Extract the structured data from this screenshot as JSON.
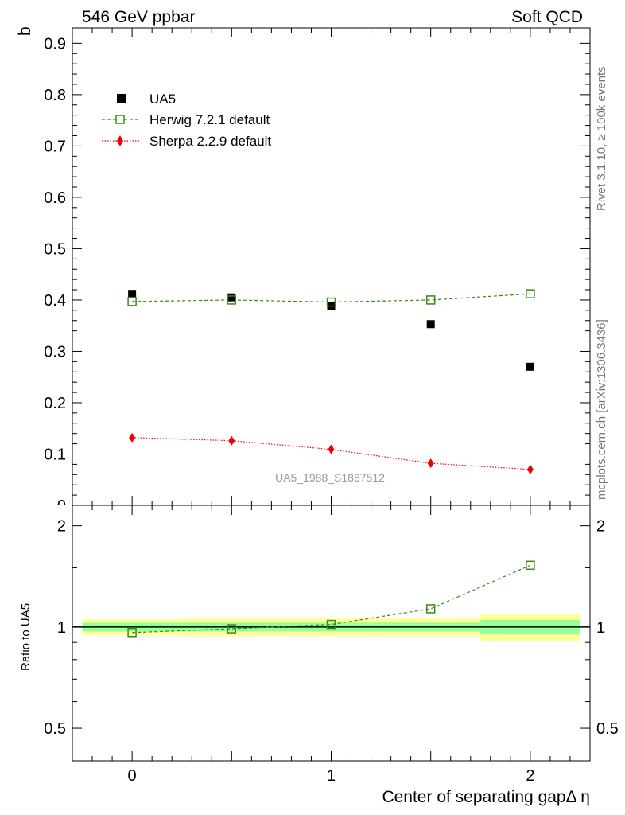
{
  "header": {
    "left": "546 GeV ppbar",
    "right": "Soft QCD"
  },
  "side_text": {
    "rivet": "Rivet 3.1.10, ≥ 100k events",
    "mcplots": "mcplots.cern.ch [arXiv:1306.3436]"
  },
  "watermark": "UA5_1988_S1867512",
  "legend": {
    "ua5": "UA5",
    "herwig": "Herwig 7.2.1 default",
    "sherpa": "Sherpa 2.2.9 default"
  },
  "colors": {
    "data": "#000000",
    "herwig": "#3a8a14",
    "sherpa": "#ee0000",
    "band_outer": "#ffff99",
    "band_inner": "#99ff99"
  },
  "chart_data": [
    {
      "type": "scatter",
      "title": "",
      "xlabel": "Center of separating gapΔ η",
      "ylabel": "b",
      "xlim": [
        -0.3,
        2.3
      ],
      "ylim": [
        0,
        0.93
      ],
      "yticks": [
        0.1,
        0.2,
        0.3,
        0.4,
        0.5,
        0.6,
        0.7,
        0.8,
        0.9
      ],
      "ytick_labels": [
        "0.1",
        "0.2",
        "0.3",
        "0.4",
        "0.5",
        "0.6",
        "0.7",
        "0.8",
        "0.9"
      ],
      "x": [
        0,
        0.5,
        1,
        1.5,
        2
      ],
      "series": [
        {
          "name": "UA5",
          "values": [
            0.412,
            0.405,
            0.389,
            0.353,
            0.27
          ]
        },
        {
          "name": "Herwig 7.2.1 default",
          "values": [
            0.397,
            0.4,
            0.396,
            0.4,
            0.412
          ]
        },
        {
          "name": "Sherpa 2.2.9 default",
          "values": [
            0.132,
            0.126,
            0.109,
            0.082,
            0.07
          ]
        }
      ]
    },
    {
      "type": "line",
      "title": "",
      "xlabel": "Center of separating gapΔ η",
      "ylabel": "Ratio to UA5",
      "xlim": [
        -0.3,
        2.3
      ],
      "ylim": [
        0.4,
        2.3
      ],
      "xticks": [
        0,
        1,
        2
      ],
      "xtick_labels": [
        "0",
        "1",
        "2"
      ],
      "yticks": [
        0.5,
        1,
        2
      ],
      "ytick_labels": [
        "0.5",
        "1",
        "2"
      ],
      "x": [
        0,
        0.5,
        1,
        1.5,
        2
      ],
      "series": [
        {
          "name": "Herwig 7.2.1 default",
          "values": [
            0.963,
            0.988,
            1.018,
            1.133,
            1.526
          ]
        }
      ],
      "uncertainty_bands": {
        "bin_edges": [
          -0.25,
          0.25,
          0.75,
          1.25,
          1.75,
          2.25
        ],
        "inner": [
          0.03,
          0.03,
          0.03,
          0.03,
          0.05
        ],
        "outer": [
          0.055,
          0.06,
          0.06,
          0.06,
          0.09
        ]
      }
    }
  ]
}
